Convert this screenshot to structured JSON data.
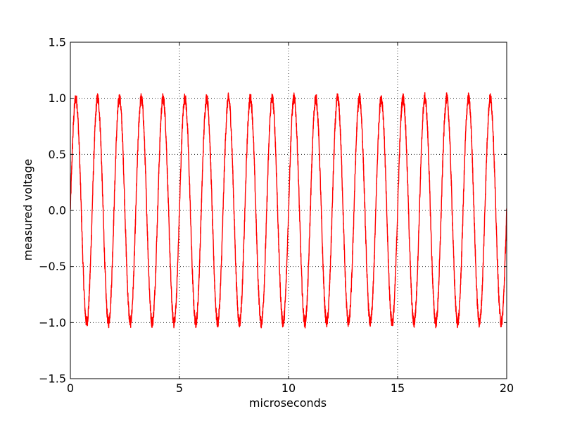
{
  "chart_data": {
    "type": "line",
    "title": "",
    "xlabel": "microseconds",
    "ylabel": "measured voltage",
    "xlim": [
      0,
      20
    ],
    "ylim": [
      -1.5,
      1.5
    ],
    "xticks": [
      0,
      5,
      10,
      15,
      20
    ],
    "xtick_labels": [
      "0",
      "5",
      "10",
      "15",
      "20"
    ],
    "yticks": [
      -1.5,
      -1.0,
      -0.5,
      0.0,
      0.5,
      1.0,
      1.5
    ],
    "ytick_labels": [
      "−1.5",
      "−1.0",
      "−0.5",
      "0.0",
      "0.5",
      "1.0",
      "1.5"
    ],
    "grid": true,
    "legend": "none",
    "series": [
      {
        "color": "#ff0000",
        "period_us": 1.0,
        "amplitude": 1.0,
        "noise_amplitude": 0.05,
        "x": [
          0,
          0.1,
          0.2,
          0.3,
          0.4,
          0.5,
          0.6,
          0.7,
          0.8,
          0.9,
          1.0,
          1.1,
          1.2,
          1.3,
          1.4,
          1.5,
          1.6,
          1.7,
          1.8,
          1.9,
          2.0,
          2.1,
          2.2,
          2.3,
          2.4,
          2.5,
          2.6,
          2.7,
          2.8,
          2.9,
          3.0,
          3.1,
          3.2,
          3.3,
          3.4,
          3.5,
          3.6,
          3.7,
          3.8,
          3.9,
          4.0,
          4.1,
          4.2,
          4.3,
          4.4,
          4.5,
          4.6,
          4.7,
          4.8,
          4.9,
          5.0,
          5.1,
          5.2,
          5.3,
          5.4,
          5.5,
          5.6,
          5.7,
          5.8,
          5.9,
          6.0,
          6.1,
          6.2,
          6.3,
          6.4,
          6.5,
          6.6,
          6.7,
          6.8,
          6.9,
          7.0,
          7.1,
          7.2,
          7.3,
          7.4,
          7.5,
          7.6,
          7.7,
          7.8,
          7.9,
          8.0,
          8.1,
          8.2,
          8.3,
          8.4,
          8.5,
          8.6,
          8.7,
          8.8,
          8.9,
          9.0,
          9.1,
          9.2,
          9.3,
          9.4,
          9.5,
          9.6,
          9.7,
          9.8,
          9.9,
          10.0,
          10.1,
          10.2,
          10.3,
          10.4,
          10.5,
          10.6,
          10.7,
          10.8,
          10.9,
          11.0,
          11.1,
          11.2,
          11.3,
          11.4,
          11.5,
          11.6,
          11.7,
          11.8,
          11.9,
          12.0,
          12.1,
          12.2,
          12.3,
          12.4,
          12.5,
          12.6,
          12.7,
          12.8,
          12.9,
          13.0,
          13.1,
          13.2,
          13.3,
          13.4,
          13.5,
          13.6,
          13.7,
          13.8,
          13.9,
          14.0,
          14.1,
          14.2,
          14.3,
          14.4,
          14.5,
          14.6,
          14.7,
          14.8,
          14.9,
          15.0,
          15.1,
          15.2,
          15.3,
          15.4,
          15.5,
          15.6,
          15.7,
          15.8,
          15.9,
          16.0,
          16.1,
          16.2,
          16.3,
          16.4,
          16.5,
          16.6,
          16.7,
          16.8,
          16.9,
          17.0,
          17.1,
          17.2,
          17.3,
          17.4,
          17.5,
          17.6,
          17.7,
          17.8,
          17.9,
          18.0,
          18.1,
          18.2,
          18.3,
          18.4,
          18.5,
          18.6,
          18.7,
          18.8,
          18.9,
          19.0,
          19.1,
          19.2,
          19.3,
          19.4,
          19.5,
          19.6,
          19.7,
          19.8,
          19.9,
          20.0
        ],
        "y": [
          0.0,
          0.59,
          0.95,
          0.95,
          0.59,
          0.0,
          -0.59,
          -0.95,
          -0.95,
          -0.59,
          0.0,
          0.59,
          0.95,
          0.95,
          0.59,
          0.0,
          -0.59,
          -0.95,
          -0.95,
          -0.59,
          0.0,
          0.59,
          0.95,
          0.95,
          0.59,
          0.0,
          -0.59,
          -0.95,
          -0.95,
          -0.59,
          0.0,
          0.59,
          0.95,
          0.95,
          0.59,
          0.0,
          -0.59,
          -0.95,
          -0.95,
          -0.59,
          0.0,
          0.59,
          0.95,
          0.95,
          0.59,
          0.0,
          -0.59,
          -0.95,
          -0.95,
          -0.59,
          0.0,
          0.59,
          0.95,
          0.95,
          0.59,
          0.0,
          -0.59,
          -0.95,
          -0.95,
          -0.59,
          0.0,
          0.59,
          0.95,
          0.95,
          0.59,
          0.0,
          -0.59,
          -0.95,
          -0.95,
          -0.59,
          0.0,
          0.59,
          0.95,
          0.95,
          0.59,
          0.0,
          -0.59,
          -0.95,
          -0.95,
          -0.59,
          0.0,
          0.59,
          0.95,
          0.95,
          0.59,
          0.0,
          -0.59,
          -0.95,
          -0.95,
          -0.59,
          0.0,
          0.59,
          0.95,
          0.95,
          0.59,
          0.0,
          -0.59,
          -0.95,
          -0.95,
          -0.59,
          0.0,
          0.59,
          0.95,
          0.95,
          0.59,
          0.0,
          -0.59,
          -0.95,
          -0.95,
          -0.59,
          0.0,
          0.59,
          0.95,
          0.95,
          0.59,
          0.0,
          -0.59,
          -0.95,
          -0.95,
          -0.59,
          0.0,
          0.59,
          0.95,
          0.95,
          0.59,
          0.0,
          -0.59,
          -0.95,
          -0.95,
          -0.59,
          0.0,
          0.59,
          0.95,
          0.95,
          0.59,
          0.0,
          -0.59,
          -0.95,
          -0.95,
          -0.59,
          0.0,
          0.59,
          0.95,
          0.95,
          0.59,
          0.0,
          -0.59,
          -0.95,
          -0.95,
          -0.59,
          0.0,
          0.59,
          0.95,
          0.95,
          0.59,
          0.0,
          -0.59,
          -0.95,
          -0.95,
          -0.59,
          0.0,
          0.59,
          0.95,
          0.95,
          0.59,
          0.0,
          -0.59,
          -0.95,
          -0.95,
          -0.59,
          0.0,
          0.59,
          0.95,
          0.95,
          0.59,
          0.0,
          -0.59,
          -0.95,
          -0.95,
          -0.59,
          0.0,
          0.59,
          0.95,
          0.95,
          0.59,
          0.0,
          -0.59,
          -0.95,
          -0.95,
          -0.59,
          0.0,
          0.59,
          0.95,
          0.95,
          0.59,
          0.0,
          -0.59,
          -0.95,
          -0.95,
          -0.59,
          0.0
        ]
      }
    ]
  }
}
